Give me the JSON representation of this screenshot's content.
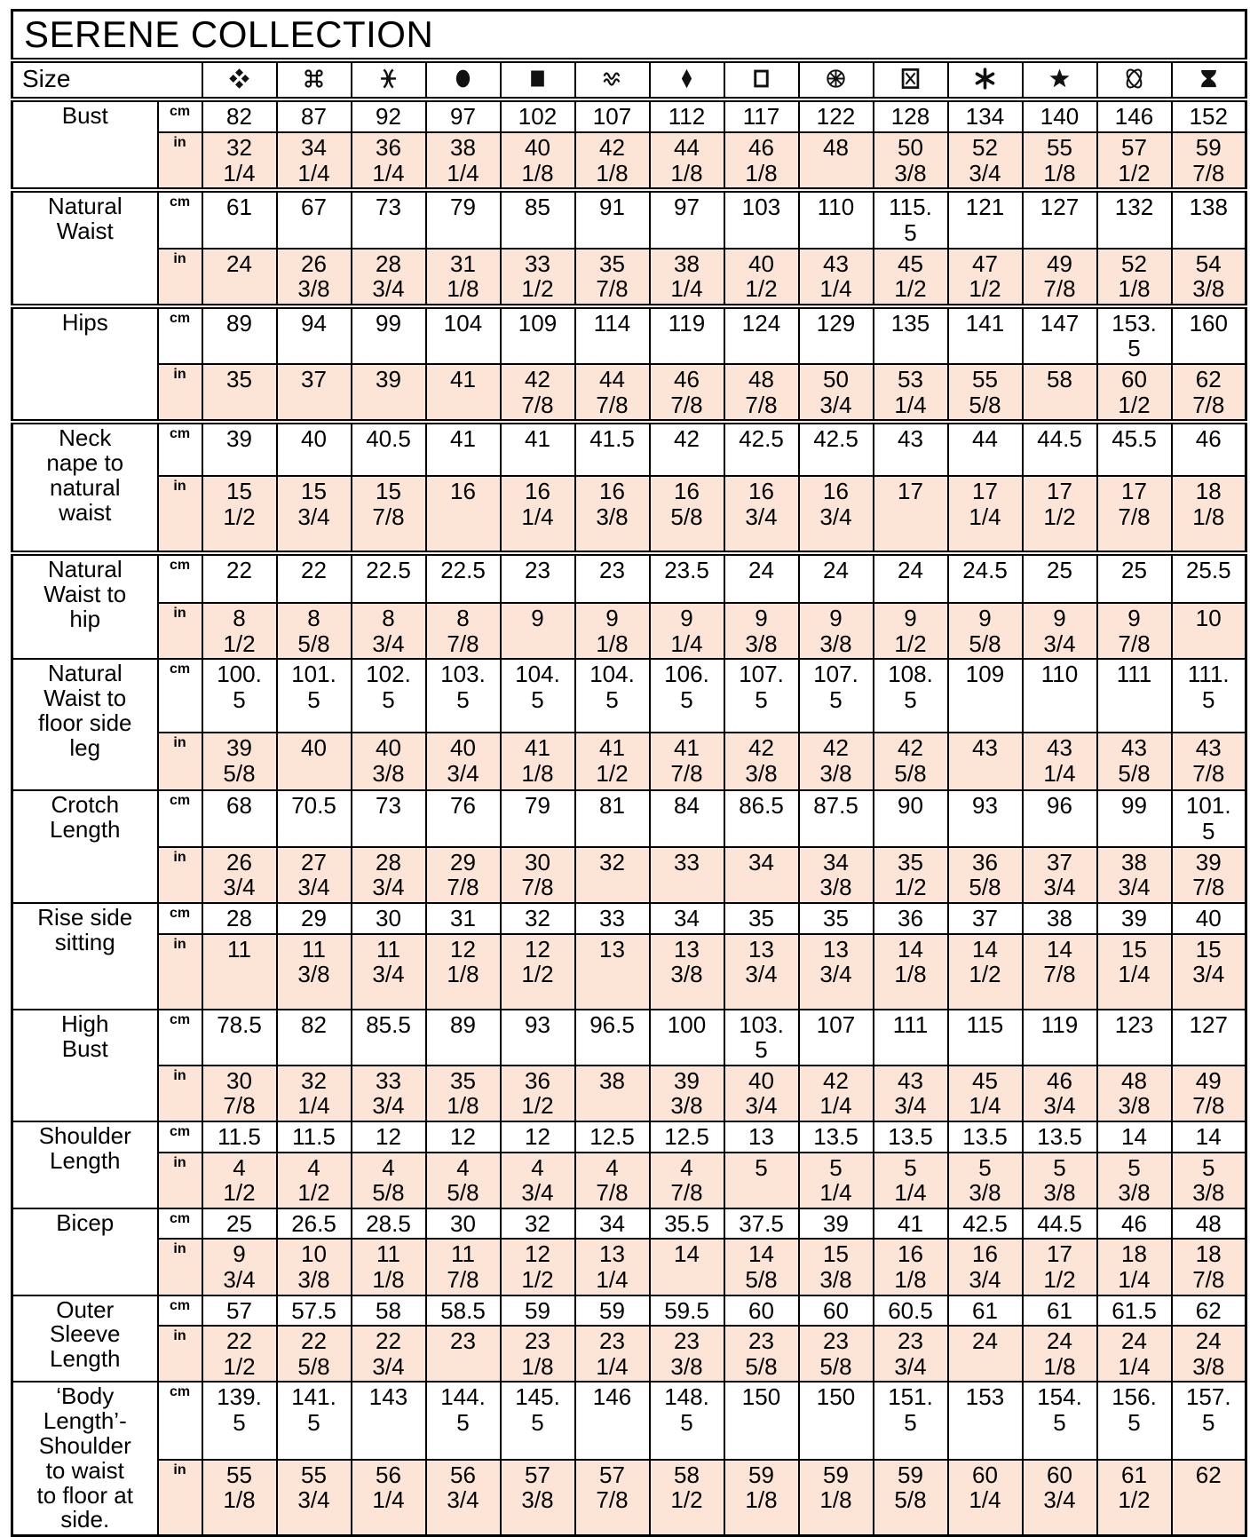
{
  "title": "SERENE COLLECTION",
  "size_header": {
    "label": "Size"
  },
  "units": {
    "cm": "cm",
    "in": "in"
  },
  "colors": {
    "in_row_bg": "#fce4d6",
    "border": "#000000",
    "text": "#000000",
    "background": "#ffffff"
  },
  "sizes": [
    {
      "icon": "four-diamonds"
    },
    {
      "icon": "command"
    },
    {
      "icon": "pisces"
    },
    {
      "icon": "oval"
    },
    {
      "icon": "filled-square"
    },
    {
      "icon": "waves"
    },
    {
      "icon": "diamond"
    },
    {
      "icon": "open-square"
    },
    {
      "icon": "wheel"
    },
    {
      "icon": "boxed-x"
    },
    {
      "icon": "asterisk"
    },
    {
      "icon": "star"
    },
    {
      "icon": "crossed-ellipses"
    },
    {
      "icon": "hourglass"
    }
  ],
  "rows": [
    {
      "label": "Bust",
      "cm": [
        "82",
        "87",
        "92",
        "97",
        "102",
        "107",
        "112",
        "117",
        "122",
        "128",
        "134",
        "140",
        "146",
        "152"
      ],
      "in": [
        "32 1/4",
        "34 1/4",
        "36 1/4",
        "38 1/4",
        "40 1/8",
        "42 1/8",
        "44 1/8",
        "46 1/8",
        "48",
        "50 3/8",
        "52 3/4",
        "55 1/8",
        "57 1/2",
        "59 7/8"
      ]
    },
    {
      "label": "Natural Waist",
      "cm": [
        "61",
        "67",
        "73",
        "79",
        "85",
        "91",
        "97",
        "103",
        "110",
        "115.5",
        "121",
        "127",
        "132",
        "138"
      ],
      "in": [
        "24",
        "26 3/8",
        "28 3/4",
        "31 1/8",
        "33 1/2",
        "35 7/8",
        "38 1/4",
        "40 1/2",
        "43 1/4",
        "45 1/2",
        "47 1/2",
        "49 7/8",
        "52 1/8",
        "54 3/8"
      ]
    },
    {
      "label": "Hips",
      "cm": [
        "89",
        "94",
        "99",
        "104",
        "109",
        "114",
        "119",
        "124",
        "129",
        "135",
        "141",
        "147",
        "153.5",
        "160"
      ],
      "in": [
        "35",
        "37",
        "39",
        "41",
        "42 7/8",
        "44 7/8",
        "46 7/8",
        "48 7/8",
        "50 3/4",
        "53 1/4",
        "55 5/8",
        "58",
        "60 1/2",
        "62 7/8"
      ]
    },
    {
      "label": "Neck nape to natural waist",
      "cm": [
        "39",
        "40",
        "40.5",
        "41",
        "41",
        "41.5",
        "42",
        "42.5",
        "42.5",
        "43",
        "44",
        "44.5",
        "45.5",
        "46"
      ],
      "in": [
        "15 1/2",
        "15 3/4",
        "15 7/8",
        "16",
        "16 1/4",
        "16 3/8",
        "16 5/8",
        "16 3/4",
        "16 3/4",
        "17",
        "17 1/4",
        "17 1/2",
        "17 7/8",
        "18 1/8"
      ]
    },
    {
      "label": "Natural Waist to hip",
      "cm": [
        "22",
        "22",
        "22.5",
        "22.5",
        "23",
        "23",
        "23.5",
        "24",
        "24",
        "24",
        "24.5",
        "25",
        "25",
        "25.5"
      ],
      "in": [
        "8 1/2",
        "8 5/8",
        "8 3/4",
        "8 7/8",
        "9",
        "9 1/8",
        "9 1/4",
        "9 3/8",
        "9 3/8",
        "9 1/2",
        "9 5/8",
        "9 3/4",
        "9 7/8",
        "10"
      ]
    },
    {
      "label": "Natural Waist to floor side leg",
      "cm": [
        "100.5",
        "101.5",
        "102.5",
        "103.5",
        "104.5",
        "104.5",
        "106.5",
        "107.5",
        "107.5",
        "108.5",
        "109",
        "110",
        "111",
        "111.5"
      ],
      "in": [
        "39 5/8",
        "40",
        "40 3/8",
        "40 3/4",
        "41 1/8",
        "41 1/2",
        "41 7/8",
        "42 3/8",
        "42 3/8",
        "42 5/8",
        "43",
        "43 1/4",
        "43 5/8",
        "43 7/8"
      ]
    },
    {
      "label": "Crotch Length",
      "cm": [
        "68",
        "70.5",
        "73",
        "76",
        "79",
        "81",
        "84",
        "86.5",
        "87.5",
        "90",
        "93",
        "96",
        "99",
        "101.5"
      ],
      "in": [
        "26 3/4",
        "27 3/4",
        "28 3/4",
        "29 7/8",
        "30 7/8",
        "32",
        "33",
        "34",
        "34 3/8",
        "35 1/2",
        "36 5/8",
        "37 3/4",
        "38 3/4",
        "39 7/8"
      ]
    },
    {
      "label": "Rise side sitting",
      "cm": [
        "28",
        "29",
        "30",
        "31",
        "32",
        "33",
        "34",
        "35",
        "35",
        "36",
        "37",
        "38",
        "39",
        "40"
      ],
      "in": [
        "11",
        "11 3/8",
        "11 3/4",
        "12 1/8",
        "12 1/2",
        "13",
        "13 3/8",
        "13 3/4",
        "13 3/4",
        "14 1/8",
        "14 1/2",
        "14 7/8",
        "15 1/4",
        "15 3/4"
      ]
    },
    {
      "label": "High Bust",
      "cm": [
        "78.5",
        "82",
        "85.5",
        "89",
        "93",
        "96.5",
        "100",
        "103.5",
        "107",
        "111",
        "115",
        "119",
        "123",
        "127"
      ],
      "in": [
        "30 7/8",
        "32 1/4",
        "33 3/4",
        "35 1/8",
        "36 1/2",
        "38",
        "39 3/8",
        "40 3/4",
        "42 1/4",
        "43 3/4",
        "45 1/4",
        "46 3/4",
        "48 3/8",
        "49 7/8"
      ]
    },
    {
      "label": "Shoulder Length",
      "cm": [
        "11.5",
        "11.5",
        "12",
        "12",
        "12",
        "12.5",
        "12.5",
        "13",
        "13.5",
        "13.5",
        "13.5",
        "13.5",
        "14",
        "14"
      ],
      "in": [
        "4 1/2",
        "4 1/2",
        "4 5/8",
        "4 5/8",
        "4 3/4",
        "4 7/8",
        "4 7/8",
        "5",
        "5 1/4",
        "5 1/4",
        "5 3/8",
        "5 3/8",
        "5 3/8",
        "5 3/8"
      ]
    },
    {
      "label": "Bicep",
      "cm": [
        "25",
        "26.5",
        "28.5",
        "30",
        "32",
        "34",
        "35.5",
        "37.5",
        "39",
        "41",
        "42.5",
        "44.5",
        "46",
        "48"
      ],
      "in": [
        "9 3/4",
        "10 3/8",
        "11 1/8",
        "11 7/8",
        "12 1/2",
        "13 1/4",
        "14",
        "14 5/8",
        "15 3/8",
        "16 1/8",
        "16 3/4",
        "17 1/2",
        "18 1/4",
        "18 7/8"
      ]
    },
    {
      "label": "Outer Sleeve Length",
      "cm": [
        "57",
        "57.5",
        "58",
        "58.5",
        "59",
        "59",
        "59.5",
        "60",
        "60",
        "60.5",
        "61",
        "61",
        "61.5",
        "62"
      ],
      "in": [
        "22 1/2",
        "22 5/8",
        "22 3/4",
        "23",
        "23 1/8",
        "23 1/4",
        "23 3/8",
        "23 5/8",
        "23 5/8",
        "23 3/4",
        "24",
        "24 1/8",
        "24 1/4",
        "24 3/8"
      ]
    },
    {
      "label": "‘Body Length’- Shoulder to waist to floor at side.",
      "cm": [
        "139.5",
        "141.5",
        "143",
        "144.5",
        "145.5",
        "146",
        "148.5",
        "150",
        "150",
        "151.5",
        "153",
        "154.5",
        "156.5",
        "157.5"
      ],
      "in": [
        "55 1/8",
        "55 3/4",
        "56 1/4",
        "56 3/4",
        "57 3/8",
        "57 7/8",
        "58 1/2",
        "59 1/8",
        "59 1/8",
        "59 5/8",
        "60 1/4",
        "60 3/4",
        "61 1/2",
        "62"
      ]
    }
  ]
}
